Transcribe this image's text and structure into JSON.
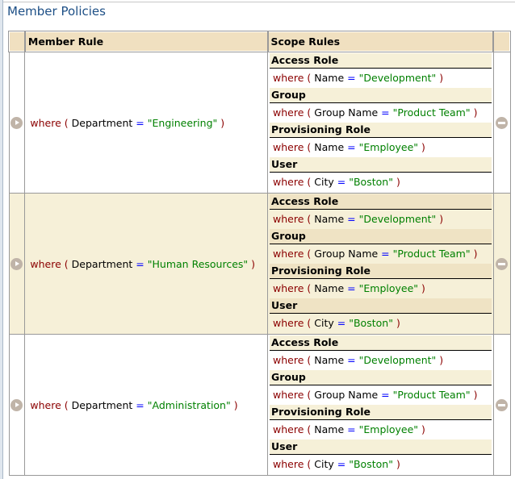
{
  "title": "Member Policies",
  "headers": {
    "member_rule": "Member Rule",
    "scope_rules": "Scope Rules"
  },
  "syntax": {
    "where": "where",
    "open": "(",
    "close": ")",
    "eq": "="
  },
  "rows": [
    {
      "member": {
        "field": "Department",
        "value": "\"Engineering\""
      },
      "scopes": [
        {
          "type": "Access Role",
          "field": "Name",
          "value": "\"Development\""
        },
        {
          "type": "Group",
          "field": "Group Name",
          "value": "\"Product Team\""
        },
        {
          "type": "Provisioning Role",
          "field": "Name",
          "value": "\"Employee\""
        },
        {
          "type": "User",
          "field": "City",
          "value": "\"Boston\""
        }
      ]
    },
    {
      "member": {
        "field": "Department",
        "value": "\"Human Resources\""
      },
      "scopes": [
        {
          "type": "Access Role",
          "field": "Name",
          "value": "\"Development\""
        },
        {
          "type": "Group",
          "field": "Group Name",
          "value": "\"Product Team\""
        },
        {
          "type": "Provisioning Role",
          "field": "Name",
          "value": "\"Employee\""
        },
        {
          "type": "User",
          "field": "City",
          "value": "\"Boston\""
        }
      ]
    },
    {
      "member": {
        "field": "Department",
        "value": "\"Administration\""
      },
      "scopes": [
        {
          "type": "Access Role",
          "field": "Name",
          "value": "\"Development\""
        },
        {
          "type": "Group",
          "field": "Group Name",
          "value": "\"Product Team\""
        },
        {
          "type": "Provisioning Role",
          "field": "Name",
          "value": "\"Employee\""
        },
        {
          "type": "User",
          "field": "City",
          "value": "\"Boston\""
        }
      ]
    }
  ],
  "colors": {
    "keyword": "#8b0000",
    "operator": "#0000ff",
    "string": "#008000",
    "header_bg": "#f0e0c0",
    "row_alt_bg": "#f6f0d8"
  }
}
